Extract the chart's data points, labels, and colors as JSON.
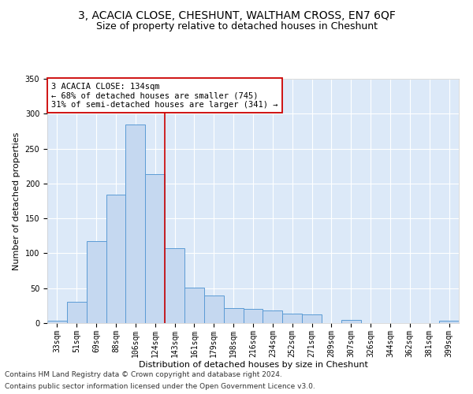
{
  "title": "3, ACACIA CLOSE, CHESHUNT, WALTHAM CROSS, EN7 6QF",
  "subtitle": "Size of property relative to detached houses in Cheshunt",
  "xlabel": "Distribution of detached houses by size in Cheshunt",
  "ylabel": "Number of detached properties",
  "bin_labels": [
    "33sqm",
    "51sqm",
    "69sqm",
    "88sqm",
    "106sqm",
    "124sqm",
    "143sqm",
    "161sqm",
    "179sqm",
    "198sqm",
    "216sqm",
    "234sqm",
    "252sqm",
    "271sqm",
    "289sqm",
    "307sqm",
    "326sqm",
    "344sqm",
    "362sqm",
    "381sqm",
    "399sqm"
  ],
  "bar_heights": [
    3,
    30,
    117,
    184,
    284,
    213,
    107,
    51,
    40,
    21,
    20,
    18,
    14,
    12,
    0,
    4,
    0,
    0,
    0,
    0,
    3
  ],
  "bar_color": "#c5d8f0",
  "bar_edge_color": "#5b9bd5",
  "vline_x": 5.5,
  "vline_color": "#cc0000",
  "annotation_text": "3 ACACIA CLOSE: 134sqm\n← 68% of detached houses are smaller (745)\n31% of semi-detached houses are larger (341) →",
  "annotation_box_color": "#ffffff",
  "annotation_box_edge_color": "#cc0000",
  "ylim": [
    0,
    350
  ],
  "yticks": [
    0,
    50,
    100,
    150,
    200,
    250,
    300,
    350
  ],
  "footnote1": "Contains HM Land Registry data © Crown copyright and database right 2024.",
  "footnote2": "Contains public sector information licensed under the Open Government Licence v3.0.",
  "bg_color": "#dce9f8",
  "fig_bg_color": "#ffffff",
  "title_fontsize": 10,
  "subtitle_fontsize": 9,
  "annotation_fontsize": 7.5,
  "axis_label_fontsize": 8,
  "tick_fontsize": 7,
  "footnote_fontsize": 6.5
}
